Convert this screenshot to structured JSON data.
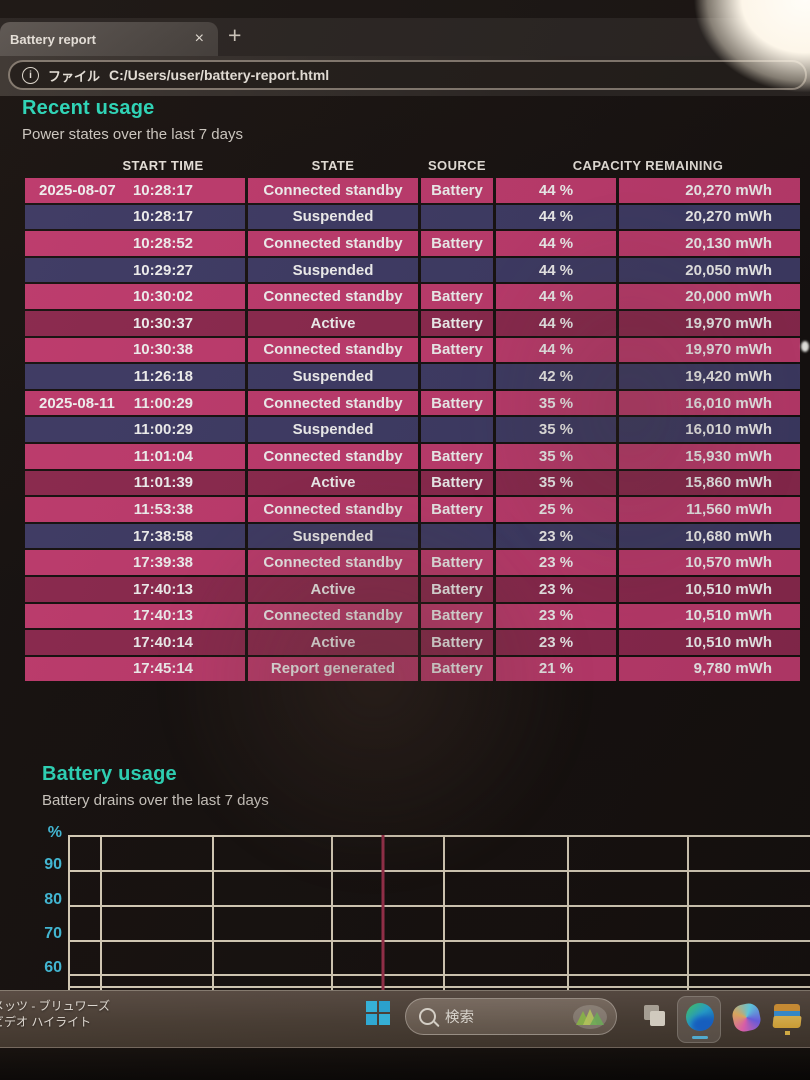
{
  "browser": {
    "tab_title": "Battery report",
    "tab_close_glyph": "×",
    "new_tab_glyph": "+",
    "info_glyph": "i",
    "address_scheme": "ファイル",
    "address_url": "C:/Users/user/battery-report.html"
  },
  "report": {
    "recent_usage": {
      "title": "Recent usage",
      "subtitle": "Power states over the last 7 days",
      "table": {
        "headers": {
          "start_time": "START TIME",
          "state": "STATE",
          "source": "SOURCE",
          "capacity": "CAPACITY REMAINING"
        },
        "rows": [
          {
            "date": "2025-08-07",
            "time": "10:28:17",
            "state": "Connected standby",
            "source": "Battery",
            "percent": "44 %",
            "mwh": "20,270 mWh",
            "variant": "standby"
          },
          {
            "date": "",
            "time": "10:28:17",
            "state": "Suspended",
            "source": "",
            "percent": "44 %",
            "mwh": "20,270 mWh",
            "variant": "suspended"
          },
          {
            "date": "",
            "time": "10:28:52",
            "state": "Connected standby",
            "source": "Battery",
            "percent": "44 %",
            "mwh": "20,130 mWh",
            "variant": "standby"
          },
          {
            "date": "",
            "time": "10:29:27",
            "state": "Suspended",
            "source": "",
            "percent": "44 %",
            "mwh": "20,050 mWh",
            "variant": "suspended"
          },
          {
            "date": "",
            "time": "10:30:02",
            "state": "Connected standby",
            "source": "Battery",
            "percent": "44 %",
            "mwh": "20,000 mWh",
            "variant": "standby"
          },
          {
            "date": "",
            "time": "10:30:37",
            "state": "Active",
            "source": "Battery",
            "percent": "44 %",
            "mwh": "19,970 mWh",
            "variant": "active"
          },
          {
            "date": "",
            "time": "10:30:38",
            "state": "Connected standby",
            "source": "Battery",
            "percent": "44 %",
            "mwh": "19,970 mWh",
            "variant": "standby"
          },
          {
            "date": "",
            "time": "11:26:18",
            "state": "Suspended",
            "source": "",
            "percent": "42 %",
            "mwh": "19,420 mWh",
            "variant": "suspended"
          },
          {
            "date": "2025-08-11",
            "time": "11:00:29",
            "state": "Connected standby",
            "source": "Battery",
            "percent": "35 %",
            "mwh": "16,010 mWh",
            "variant": "standby"
          },
          {
            "date": "",
            "time": "11:00:29",
            "state": "Suspended",
            "source": "",
            "percent": "35 %",
            "mwh": "16,010 mWh",
            "variant": "suspended"
          },
          {
            "date": "",
            "time": "11:01:04",
            "state": "Connected standby",
            "source": "Battery",
            "percent": "35 %",
            "mwh": "15,930 mWh",
            "variant": "standby"
          },
          {
            "date": "",
            "time": "11:01:39",
            "state": "Active",
            "source": "Battery",
            "percent": "35 %",
            "mwh": "15,860 mWh",
            "variant": "active"
          },
          {
            "date": "",
            "time": "11:53:38",
            "state": "Connected standby",
            "source": "Battery",
            "percent": "25 %",
            "mwh": "11,560 mWh",
            "variant": "standby"
          },
          {
            "date": "",
            "time": "17:38:58",
            "state": "Suspended",
            "source": "",
            "percent": "23 %",
            "mwh": "10,680 mWh",
            "variant": "suspended"
          },
          {
            "date": "",
            "time": "17:39:38",
            "state": "Connected standby",
            "source": "Battery",
            "percent": "23 %",
            "mwh": "10,570 mWh",
            "variant": "standby"
          },
          {
            "date": "",
            "time": "17:40:13",
            "state": "Active",
            "source": "Battery",
            "percent": "23 %",
            "mwh": "10,510 mWh",
            "variant": "active"
          },
          {
            "date": "",
            "time": "17:40:13",
            "state": "Connected standby",
            "source": "Battery",
            "percent": "23 %",
            "mwh": "10,510 mWh",
            "variant": "standby"
          },
          {
            "date": "",
            "time": "17:40:14",
            "state": "Active",
            "source": "Battery",
            "percent": "23 %",
            "mwh": "10,510 mWh",
            "variant": "active"
          },
          {
            "date": "",
            "time": "17:45:14",
            "state": "Report generated",
            "source": "Battery",
            "percent": "21 %",
            "mwh": "9,780 mWh",
            "variant": "report"
          }
        ]
      }
    },
    "battery_usage": {
      "title": "Battery usage",
      "subtitle": "Battery drains over the last 7 days"
    }
  },
  "chart_data": {
    "type": "line",
    "title": "Battery usage",
    "subtitle": "Battery drains over the last 7 days",
    "ylabel": "%",
    "yticks": [
      "90",
      "80",
      "70",
      "60"
    ],
    "ylim_visible": [
      60,
      100
    ],
    "grid": true,
    "legend_position": "none",
    "annotations": [
      {
        "type": "vertical-drain-line",
        "x_fraction": 0.42,
        "color": "#a23350"
      }
    ],
    "series": []
  },
  "taskbar": {
    "widget": {
      "line1": "メッツ - ブリュワーズ",
      "line2": "ビデオ ハイライト"
    },
    "search": {
      "label": "検索"
    },
    "icon_names": [
      "windows-start-icon",
      "search-magnifier-icon",
      "spotlight-mountains-icon",
      "task-view-icon",
      "edge-browser-icon",
      "copilot-icon",
      "file-explorer-icon"
    ]
  },
  "colors": {
    "heading_teal": "#2fe3c4",
    "axis_cyan": "#46c8e8",
    "row_standby_pink": "#c93e74",
    "row_suspended_navy": "#413e6b",
    "row_active_crimson": "#932b53",
    "grid_line_cream": "#e6dcc6",
    "drain_line": "#a23350"
  }
}
